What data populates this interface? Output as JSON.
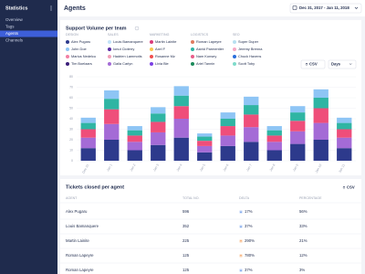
{
  "sidebar": {
    "title": "Statistics",
    "items": [
      "Overview",
      "Tags",
      "Agents",
      "Channels"
    ],
    "active": 2
  },
  "header": {
    "title": "Agents",
    "date_range": "Dec 31, 2017 - Jan 11, 2018"
  },
  "chart_card": {
    "title": "Support Volume per team",
    "export": "CSV",
    "period": "Days"
  },
  "chart_data": {
    "type": "bar",
    "stacked": true,
    "grid": true,
    "categories": [
      "Dec 31",
      "Jan 1",
      "Jan 2",
      "Jan 3",
      "Jan 4",
      "Jan 5",
      "Jan 6",
      "Jan 7",
      "Jan 8",
      "Jan 9",
      "Jan 10",
      "Jan 11"
    ],
    "ylim": [
      0,
      80
    ],
    "yticks": [
      0,
      10,
      20,
      30,
      40,
      50,
      60,
      70,
      80
    ],
    "series": [
      {
        "name": "DESIGN",
        "color": "#2d3a8c",
        "values": [
          12,
          20,
          10,
          15,
          22,
          8,
          14,
          18,
          10,
          16,
          20,
          12
        ],
        "members": [
          {
            "name": "Alex Pugaru",
            "color": "#2d3a8c"
          },
          {
            "name": "John Doe",
            "color": "#8ec5f5"
          },
          {
            "name": "Marius Nedelcu",
            "color": "#f27fa4"
          },
          {
            "name": "Tim Boelaars",
            "color": "#3b1f7a"
          }
        ]
      },
      {
        "name": "SALES",
        "color": "#a46bd6",
        "values": [
          10,
          15,
          8,
          12,
          18,
          6,
          10,
          14,
          8,
          12,
          16,
          10
        ],
        "members": [
          {
            "name": "Louis Bamanquere",
            "color": "#c2e3f9"
          },
          {
            "name": "Ionut Cioterry",
            "color": "#5b2ea6"
          },
          {
            "name": "Hadrien Lammotis",
            "color": "#f2a0b8"
          },
          {
            "name": "Gaila Carlyn",
            "color": "#a46bd6"
          }
        ]
      },
      {
        "name": "MARKETING",
        "color": "#ef4e7a",
        "values": [
          8,
          14,
          6,
          10,
          12,
          5,
          9,
          12,
          6,
          10,
          14,
          8
        ],
        "members": [
          {
            "name": "Martin Lainite",
            "color": "#d93a7a"
          },
          {
            "name": "Axel F",
            "color": "#f9c74f"
          },
          {
            "name": "Rosanne Mz",
            "color": "#ef4e4e"
          },
          {
            "name": "Livia Bie",
            "color": "#7b3fe4"
          }
        ]
      },
      {
        "name": "LOGISTICS",
        "color": "#2fb5a3",
        "values": [
          6,
          10,
          5,
          8,
          10,
          4,
          7,
          9,
          5,
          8,
          10,
          6
        ],
        "members": [
          {
            "name": "Roman Lapeyre",
            "color": "#e07a5f"
          },
          {
            "name": "Astrid Parmentier",
            "color": "#2fb5a3"
          },
          {
            "name": "Nam Konsey",
            "color": "#e85d8a"
          },
          {
            "name": "Ariel Tannin",
            "color": "#1b8a5a"
          }
        ]
      },
      {
        "name": "SEO",
        "color": "#8ec5f5",
        "values": [
          5,
          8,
          4,
          6,
          9,
          3,
          6,
          8,
          4,
          6,
          8,
          5
        ],
        "members": [
          {
            "name": "Super Duper",
            "color": "#b8e0f0"
          },
          {
            "name": "Jeremy Brenna",
            "color": "#f7a8c4"
          },
          {
            "name": "Chuck Havens",
            "color": "#2a6fdb"
          },
          {
            "name": "Scott Toby",
            "color": "#7fdbca"
          }
        ]
      }
    ]
  },
  "table": {
    "title": "Tickets closed per agent",
    "export": "CSV",
    "columns": [
      "AGENT",
      "TOTAL NO.",
      "DELTA",
      "PERCENTAGE"
    ],
    "rows": [
      {
        "agent": "Alex Pugaru",
        "total": 596,
        "delta": "17%",
        "direction": "down",
        "percentage": "56%"
      },
      {
        "agent": "Louis Bamanquere",
        "total": 352,
        "delta": "37%",
        "direction": "down",
        "percentage": "33%"
      },
      {
        "agent": "Martin Lainite",
        "total": 225,
        "delta": "290%",
        "direction": "up",
        "percentage": "21%"
      },
      {
        "agent": "Roman Lapeyre",
        "total": 125,
        "delta": "780%",
        "direction": "up",
        "percentage": "12%"
      },
      {
        "agent": "Roman Lapeyre",
        "total": 125,
        "delta": "37%",
        "direction": "down",
        "percentage": "3%"
      }
    ]
  }
}
